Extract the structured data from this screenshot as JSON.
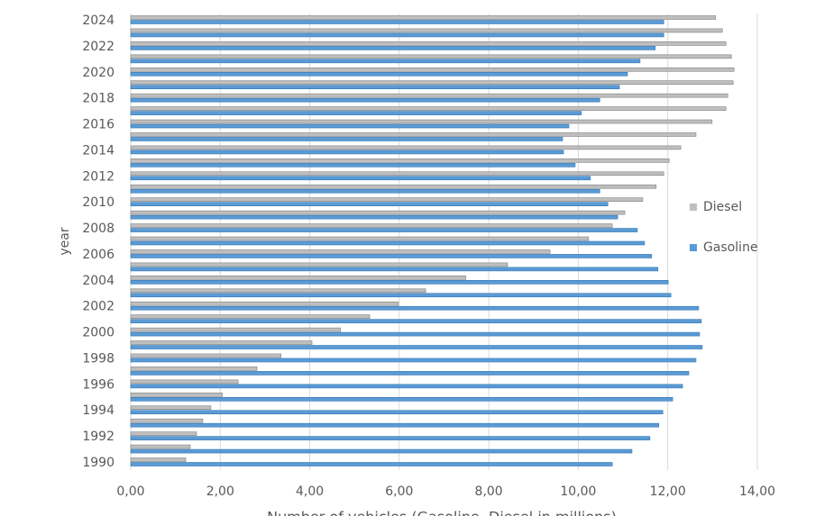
{
  "chart_data": {
    "type": "hbar",
    "x_label": "Number of vehicles (Gasoline, Diesel in millions)",
    "y_label": "year",
    "categories": [
      "1990",
      null,
      "1992",
      null,
      "1994",
      null,
      "1996",
      null,
      "1998",
      null,
      "2000",
      null,
      "2002",
      null,
      "2004",
      null,
      "2006",
      null,
      "2008",
      null,
      "2010",
      null,
      "2012",
      null,
      "2014",
      null,
      "2016",
      null,
      "2018",
      null,
      "2020",
      null,
      "2022",
      null,
      "2024"
    ],
    "series": [
      {
        "name": "Diesel",
        "color": "#bfbfbf",
        "values": [
          1.23,
          1.33,
          1.47,
          1.61,
          1.79,
          2.05,
          2.4,
          2.82,
          3.36,
          4.05,
          4.69,
          5.34,
          5.98,
          6.59,
          7.49,
          8.42,
          9.37,
          10.23,
          10.76,
          11.04,
          11.44,
          11.74,
          11.91,
          12.03,
          12.29,
          12.63,
          12.99,
          13.3,
          13.34,
          13.46,
          13.48,
          13.42,
          13.3,
          13.22,
          13.07
        ]
      },
      {
        "name": "Gasoline",
        "color": "#5b9bd5",
        "values": [
          10.76,
          11.2,
          11.6,
          11.8,
          11.89,
          12.11,
          12.33,
          12.47,
          12.63,
          12.77,
          12.71,
          12.75,
          12.69,
          12.07,
          12.01,
          11.78,
          11.64,
          11.48,
          11.32,
          10.88,
          10.66,
          10.48,
          10.27,
          9.93,
          9.67,
          9.65,
          9.79,
          10.07,
          10.48,
          10.92,
          11.1,
          11.38,
          11.72,
          11.91,
          11.91
        ]
      }
    ],
    "xlim": [
      0,
      14
    ],
    "xticks": [
      {
        "value": 0,
        "label": "0,00"
      },
      {
        "value": 2,
        "label": "2,00"
      },
      {
        "value": 4,
        "label": "4,00"
      },
      {
        "value": 6,
        "label": "6,00"
      },
      {
        "value": 8,
        "label": "8,00"
      },
      {
        "value": 10,
        "label": "10,00"
      },
      {
        "value": 12,
        "label": "12,00"
      },
      {
        "value": 14,
        "label": "14,00"
      }
    ],
    "grid": true,
    "legend": "right"
  }
}
